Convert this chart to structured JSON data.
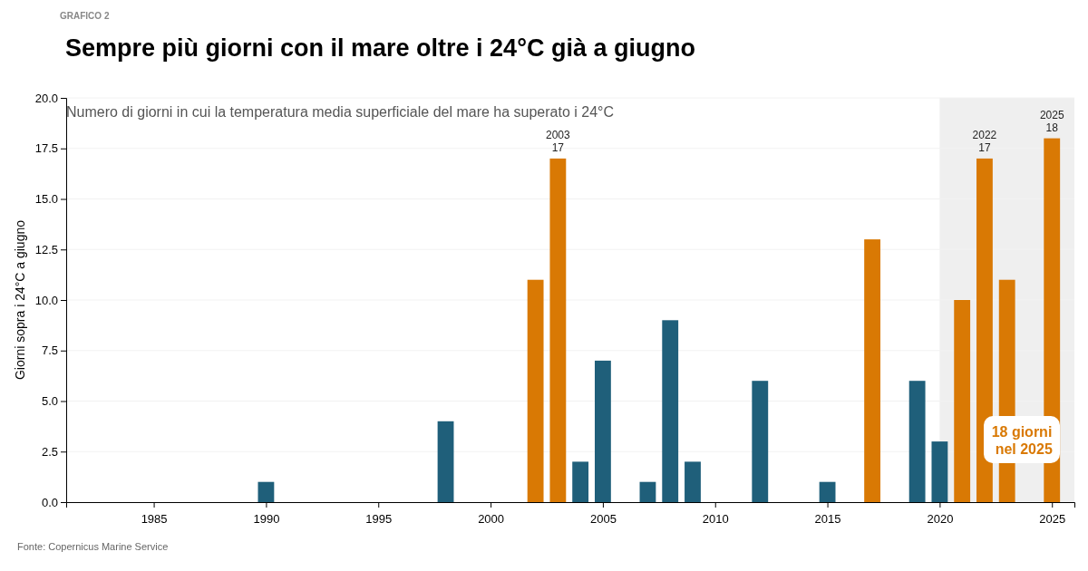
{
  "chart_data": {
    "type": "bar",
    "title": "Sempre più giorni con il mare oltre i 24°C già a giugno",
    "subtitle": "Numero di giorni in cui la temperatura media superficiale del mare ha superato i 24°C",
    "ylabel": "Giorni sopra i 24°C a giugno",
    "x": [
      1990,
      1998,
      2002,
      2003,
      2004,
      2005,
      2007,
      2008,
      2009,
      2012,
      2015,
      2017,
      2019,
      2020,
      2021,
      2022,
      2023,
      2025
    ],
    "values": [
      1,
      4,
      11,
      17,
      2,
      7,
      1,
      9,
      2,
      6,
      1,
      13,
      6,
      3,
      10,
      17,
      11,
      18
    ],
    "colors": [
      "#1f5f7a",
      "#1f5f7a",
      "#d97904",
      "#d97904",
      "#1f5f7a",
      "#1f5f7a",
      "#1f5f7a",
      "#1f5f7a",
      "#1f5f7a",
      "#1f5f7a",
      "#1f5f7a",
      "#d97904",
      "#1f5f7a",
      "#1f5f7a",
      "#d97904",
      "#d97904",
      "#d97904",
      "#d97904"
    ],
    "xlim": [
      1981.1,
      2026
    ],
    "xticks": [
      1985,
      1990,
      1995,
      2000,
      2005,
      2010,
      2015,
      2020,
      2025
    ],
    "ylim": [
      0,
      20
    ],
    "yticks": [
      {
        "value": 0,
        "label": "0.0"
      },
      {
        "value": 2.5,
        "label": "2.5"
      },
      {
        "value": 5,
        "label": "5.0"
      },
      {
        "value": 7.5,
        "label": "7.5"
      },
      {
        "value": 10,
        "label": "10.0"
      },
      {
        "value": 12.5,
        "label": "12.5"
      },
      {
        "value": 15,
        "label": "15.0"
      },
      {
        "value": 17.5,
        "label": "17.5"
      },
      {
        "value": 20,
        "label": "20.0"
      }
    ],
    "grid": "y",
    "bands": [
      {
        "axis": "x",
        "from": 2020,
        "to": 2026,
        "color": "#efefef"
      }
    ],
    "annotations": [
      "GRAFICO 2",
      {
        "text": "2003\n17",
        "x": 2003,
        "y": 17
      },
      {
        "text": "2022\n17",
        "x": 2022,
        "y": 17
      },
      {
        "text": "2025\n18",
        "x": 2025,
        "y": 18
      },
      "18 giorni\n nel 2025",
      "Fonte: Copernicus Marine Service"
    ]
  }
}
